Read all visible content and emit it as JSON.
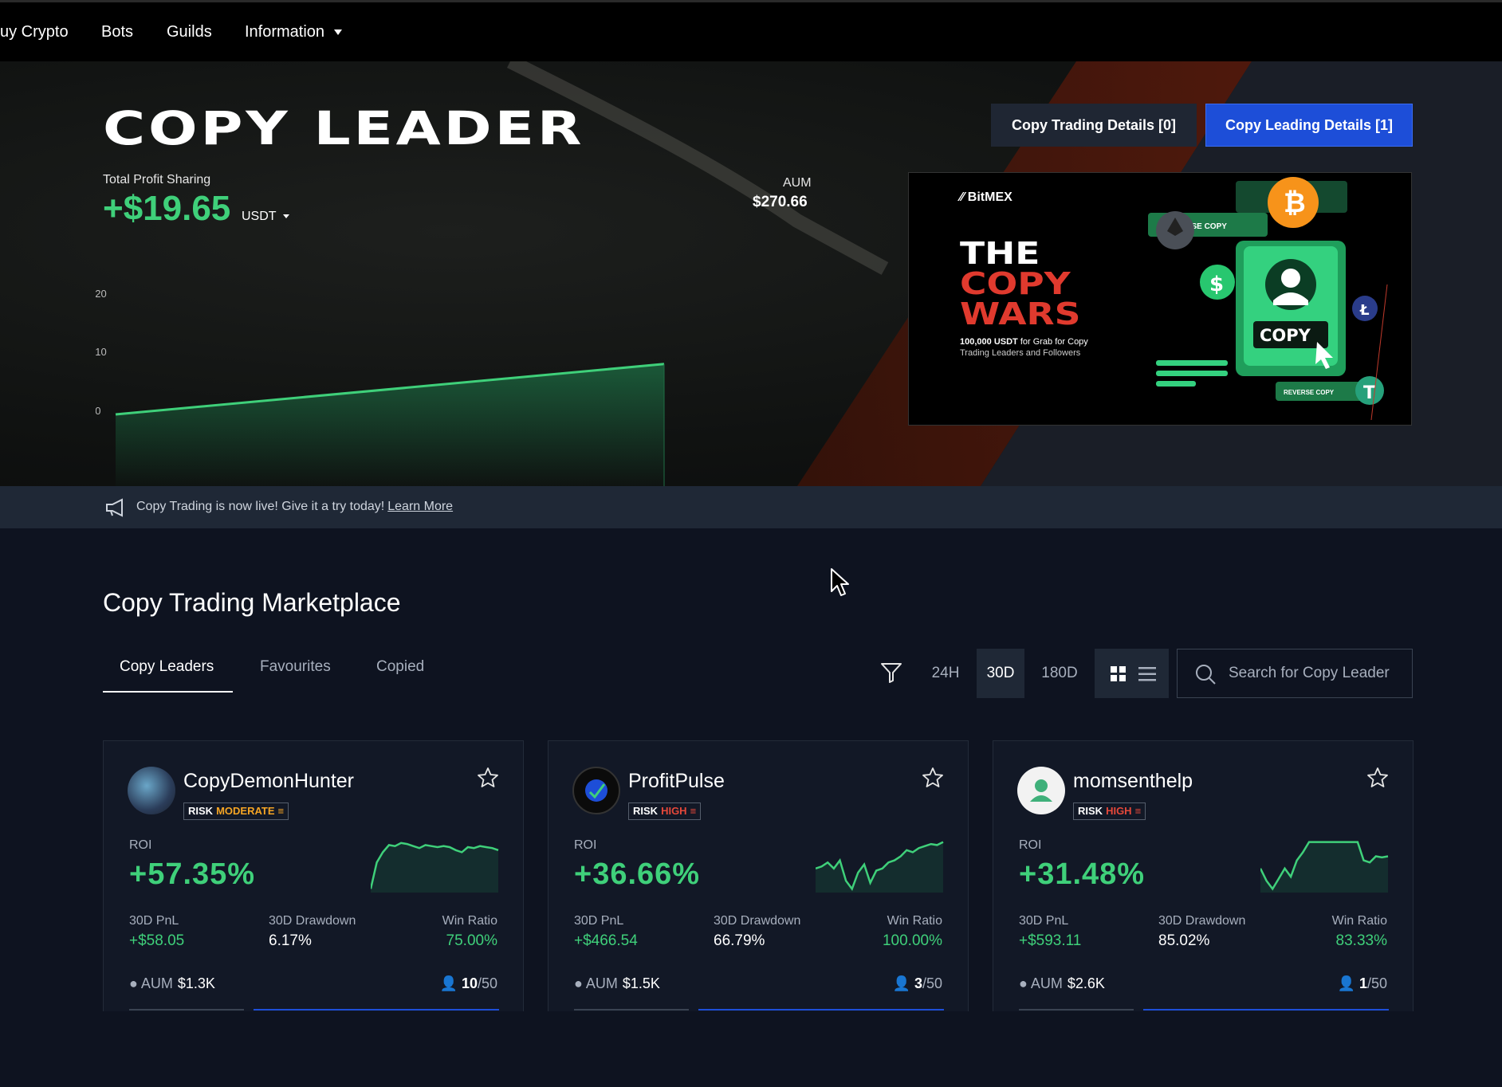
{
  "nav": {
    "items": [
      "uy Crypto",
      "Bots",
      "Guilds",
      "Information"
    ]
  },
  "hero": {
    "title": "COPY LEADER",
    "profit_label": "Total Profit Sharing",
    "profit_value": "+$19.65",
    "profit_unit": "USDT",
    "aum_label": "AUM",
    "aum_value": "$270.66",
    "btn_trading": "Copy Trading Details [0]",
    "btn_leading": "Copy Leading Details [1]"
  },
  "chart_data": {
    "type": "area",
    "x": [
      0,
      1
    ],
    "values": [
      0,
      8.6
    ],
    "yticks": [
      "$20",
      "$10",
      "$0"
    ],
    "ylim": [
      0,
      20
    ],
    "grid": false,
    "colors": {
      "line": "#3fd07a"
    }
  },
  "banner": {
    "logo": "BitMEX",
    "line1": "THE",
    "line2": "COPY",
    "line3": "WARS",
    "sub_bold": "100,000 USDT",
    "sub_rest": " for Grab for Copy",
    "sub2": "Trading Leaders and Followers",
    "tag_reverse": "REVERSE COPY",
    "tag_copy": "COPY"
  },
  "announcement": {
    "text": "Copy Trading is now live! Give it a try today!",
    "link": "Learn More"
  },
  "marketplace": {
    "title": "Copy Trading Marketplace",
    "tabs": [
      "Copy Leaders",
      "Favourites",
      "Copied"
    ],
    "periods": [
      "24H",
      "30D",
      "180D"
    ],
    "active_period": "30D",
    "search_placeholder": "Search for Copy Leader"
  },
  "cards": [
    {
      "name": "CopyDemonHunter",
      "risk_label": "RISK",
      "risk_level": "MODERATE",
      "risk_color": "#f5a524",
      "roi_label": "ROI",
      "roi": "+57.35%",
      "pnl_label": "30D PnL",
      "pnl": "+$58.05",
      "drawdown_label": "30D Drawdown",
      "drawdown": "6.17%",
      "win_label": "Win Ratio",
      "win": "75.00%",
      "aum_label": "AUM",
      "aum": "$1.3K",
      "slots_used": "10",
      "slots_total": "/50",
      "spark": [
        2,
        28,
        38,
        45,
        44,
        47,
        46,
        44,
        42,
        45,
        44,
        43,
        44,
        43,
        40,
        38,
        43,
        42,
        44,
        43,
        42,
        40
      ]
    },
    {
      "name": "ProfitPulse",
      "risk_label": "RISK",
      "risk_level": "HIGH",
      "risk_color": "#e5483a",
      "roi_label": "ROI",
      "roi": "+36.66%",
      "pnl_label": "30D PnL",
      "pnl": "+$466.54",
      "drawdown_label": "30D Drawdown",
      "drawdown": "66.79%",
      "win_label": "Win Ratio",
      "win": "100.00%",
      "aum_label": "AUM",
      "aum": "$1.5K",
      "slots_used": "3",
      "slots_total": "/50",
      "spark": [
        22,
        24,
        28,
        22,
        30,
        10,
        2,
        18,
        26,
        8,
        20,
        22,
        28,
        30,
        34,
        40,
        38,
        42,
        44,
        46,
        45,
        48
      ]
    },
    {
      "name": "momsenthelp",
      "risk_label": "RISK",
      "risk_level": "HIGH",
      "risk_color": "#e5483a",
      "roi_label": "ROI",
      "roi": "+31.48%",
      "pnl_label": "30D PnL",
      "pnl": "+$593.11",
      "drawdown_label": "30D Drawdown",
      "drawdown": "85.02%",
      "win_label": "Win Ratio",
      "win": "83.33%",
      "aum_label": "AUM",
      "aum": "$2.6K",
      "slots_used": "1",
      "slots_total": "/50",
      "spark": [
        22,
        10,
        2,
        12,
        22,
        14,
        30,
        38,
        48,
        48,
        48,
        48,
        48,
        48,
        48,
        48,
        48,
        30,
        28,
        34,
        33,
        34
      ]
    }
  ]
}
